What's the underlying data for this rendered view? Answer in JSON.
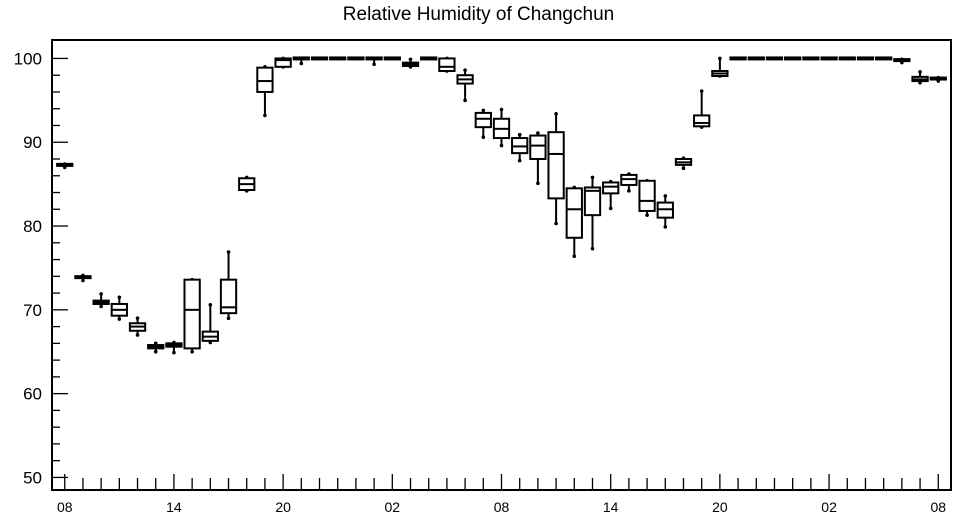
{
  "chart_data": {
    "type": "boxplot",
    "title": "Relative Humidity of Changchun",
    "xlabel": "",
    "ylabel": "",
    "ylim": [
      48.5,
      102.2
    ],
    "y_ticks": [
      50,
      60,
      70,
      80,
      90,
      100
    ],
    "x_tick_labels": [
      "08",
      "14",
      "20",
      "02",
      "08",
      "14",
      "20",
      "02",
      "08"
    ],
    "grid": false,
    "legend": "none",
    "colors": {
      "box": "#000000",
      "background": "#ffffff"
    },
    "boxes": [
      {
        "hour": 0,
        "min": 87.0,
        "q1": 87.1,
        "median": 87.2,
        "q3": 87.3,
        "max": 87.4
      },
      {
        "hour": 1,
        "min": 73.5,
        "q1": 73.7,
        "median": 73.8,
        "q3": 73.9,
        "max": 74.1
      },
      {
        "hour": 2,
        "min": 70.4,
        "q1": 70.7,
        "median": 70.9,
        "q3": 71.1,
        "max": 71.9
      },
      {
        "hour": 3,
        "min": 68.9,
        "q1": 69.3,
        "median": 70.0,
        "q3": 70.7,
        "max": 71.5
      },
      {
        "hour": 4,
        "min": 67.0,
        "q1": 67.5,
        "median": 68.0,
        "q3": 68.4,
        "max": 69.0
      },
      {
        "hour": 5,
        "min": 65.0,
        "q1": 65.4,
        "median": 65.6,
        "q3": 65.8,
        "max": 66.0
      },
      {
        "hour": 6,
        "min": 64.9,
        "q1": 65.6,
        "median": 65.8,
        "q3": 66.0,
        "max": 66.1
      },
      {
        "hour": 7,
        "min": 65.0,
        "q1": 65.4,
        "median": 70.0,
        "q3": 73.6,
        "max": 73.6
      },
      {
        "hour": 8,
        "min": 66.1,
        "q1": 66.3,
        "median": 66.8,
        "q3": 67.4,
        "max": 70.6
      },
      {
        "hour": 9,
        "min": 69.0,
        "q1": 69.6,
        "median": 70.3,
        "q3": 73.6,
        "max": 76.9
      },
      {
        "hour": 10,
        "min": 84.2,
        "q1": 84.3,
        "median": 85.0,
        "q3": 85.7,
        "max": 85.8
      },
      {
        "hour": 11,
        "min": 93.2,
        "q1": 96.0,
        "median": 97.3,
        "q3": 98.9,
        "max": 99.0
      },
      {
        "hour": 12,
        "min": 99.0,
        "q1": 99.0,
        "median": 99.8,
        "q3": 100.0,
        "max": 100.0
      },
      {
        "hour": 13,
        "min": 99.4,
        "q1": 100.0,
        "median": 100.0,
        "q3": 100.0,
        "max": 100.0
      },
      {
        "hour": 14,
        "min": 100.0,
        "q1": 100.0,
        "median": 100.0,
        "q3": 100.0,
        "max": 100.0
      },
      {
        "hour": 15,
        "min": 100.0,
        "q1": 100.0,
        "median": 100.0,
        "q3": 100.0,
        "max": 100.0
      },
      {
        "hour": 16,
        "min": 100.0,
        "q1": 100.0,
        "median": 100.0,
        "q3": 100.0,
        "max": 100.0
      },
      {
        "hour": 17,
        "min": 99.3,
        "q1": 100.0,
        "median": 100.0,
        "q3": 100.0,
        "max": 100.0
      },
      {
        "hour": 18,
        "min": 100.0,
        "q1": 100.0,
        "median": 100.0,
        "q3": 100.0,
        "max": 100.0
      },
      {
        "hour": 19,
        "min": 99.0,
        "q1": 99.1,
        "median": 99.3,
        "q3": 99.5,
        "max": 99.9
      },
      {
        "hour": 20,
        "min": 100.0,
        "q1": 100.0,
        "median": 100.0,
        "q3": 100.0,
        "max": 100.0
      },
      {
        "hour": 21,
        "min": 98.5,
        "q1": 98.5,
        "median": 99.0,
        "q3": 100.0,
        "max": 100.0
      },
      {
        "hour": 22,
        "min": 95.0,
        "q1": 97.0,
        "median": 97.5,
        "q3": 98.0,
        "max": 98.6
      },
      {
        "hour": 23,
        "min": 90.6,
        "q1": 91.8,
        "median": 92.8,
        "q3": 93.5,
        "max": 93.8
      },
      {
        "hour": 24,
        "min": 89.6,
        "q1": 90.5,
        "median": 91.6,
        "q3": 92.8,
        "max": 93.9
      },
      {
        "hour": 25,
        "min": 87.8,
        "q1": 88.7,
        "median": 89.5,
        "q3": 90.5,
        "max": 90.9
      },
      {
        "hour": 26,
        "min": 85.1,
        "q1": 88.0,
        "median": 89.6,
        "q3": 90.8,
        "max": 91.1
      },
      {
        "hour": 27,
        "min": 80.3,
        "q1": 83.3,
        "median": 88.6,
        "q3": 91.2,
        "max": 93.4
      },
      {
        "hour": 28,
        "min": 76.4,
        "q1": 78.6,
        "median": 82.0,
        "q3": 84.5,
        "max": 84.6
      },
      {
        "hour": 29,
        "min": 77.3,
        "q1": 81.3,
        "median": 84.2,
        "q3": 84.6,
        "max": 85.8
      },
      {
        "hour": 30,
        "min": 82.1,
        "q1": 83.9,
        "median": 84.7,
        "q3": 85.2,
        "max": 85.3
      },
      {
        "hour": 31,
        "min": 84.2,
        "q1": 84.9,
        "median": 85.6,
        "q3": 86.1,
        "max": 86.2
      },
      {
        "hour": 32,
        "min": 81.3,
        "q1": 81.8,
        "median": 83.0,
        "q3": 85.4,
        "max": 85.4
      },
      {
        "hour": 33,
        "min": 79.9,
        "q1": 81.0,
        "median": 82.0,
        "q3": 82.8,
        "max": 83.6
      },
      {
        "hour": 34,
        "min": 86.9,
        "q1": 87.3,
        "median": 87.6,
        "q3": 88.0,
        "max": 88.1
      },
      {
        "hour": 35,
        "min": 91.8,
        "q1": 91.9,
        "median": 92.3,
        "q3": 93.2,
        "max": 96.1
      },
      {
        "hour": 36,
        "min": 97.9,
        "q1": 97.9,
        "median": 98.2,
        "q3": 98.5,
        "max": 100.0
      },
      {
        "hour": 37,
        "min": 100.0,
        "q1": 100.0,
        "median": 100.0,
        "q3": 100.0,
        "max": 100.0
      },
      {
        "hour": 38,
        "min": 100.0,
        "q1": 100.0,
        "median": 100.0,
        "q3": 100.0,
        "max": 100.0
      },
      {
        "hour": 39,
        "min": 100.0,
        "q1": 100.0,
        "median": 100.0,
        "q3": 100.0,
        "max": 100.0
      },
      {
        "hour": 40,
        "min": 100.0,
        "q1": 100.0,
        "median": 100.0,
        "q3": 100.0,
        "max": 100.0
      },
      {
        "hour": 41,
        "min": 100.0,
        "q1": 100.0,
        "median": 100.0,
        "q3": 100.0,
        "max": 100.0
      },
      {
        "hour": 42,
        "min": 100.0,
        "q1": 100.0,
        "median": 100.0,
        "q3": 100.0,
        "max": 100.0
      },
      {
        "hour": 43,
        "min": 100.0,
        "q1": 100.0,
        "median": 100.0,
        "q3": 100.0,
        "max": 100.0
      },
      {
        "hour": 44,
        "min": 100.0,
        "q1": 100.0,
        "median": 100.0,
        "q3": 100.0,
        "max": 100.0
      },
      {
        "hour": 45,
        "min": 100.0,
        "q1": 100.0,
        "median": 100.0,
        "q3": 100.0,
        "max": 100.0
      },
      {
        "hour": 46,
        "min": 99.5,
        "q1": 99.6,
        "median": 99.7,
        "q3": 99.8,
        "max": 99.9
      },
      {
        "hour": 47,
        "min": 97.1,
        "q1": 97.3,
        "median": 97.5,
        "q3": 97.8,
        "max": 98.4
      },
      {
        "hour": 48,
        "min": 97.3,
        "q1": 97.4,
        "median": 97.5,
        "q3": 97.6,
        "max": 97.7
      }
    ]
  }
}
